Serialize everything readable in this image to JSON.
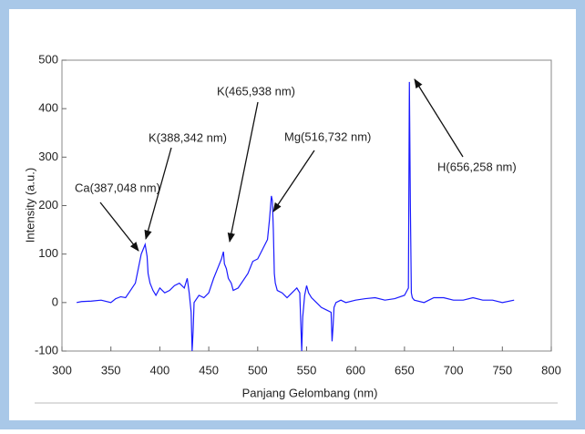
{
  "chart_data": {
    "type": "line",
    "xlabel": "Panjang Gelombang (nm)",
    "ylabel": "Intensity (a.u.)",
    "x": [
      315,
      320,
      330,
      340,
      350,
      355,
      360,
      365,
      370,
      375,
      378,
      381,
      383,
      385,
      387,
      388,
      390,
      393,
      396,
      400,
      405,
      410,
      415,
      420,
      425,
      428,
      430,
      432,
      433,
      434,
      435,
      440,
      445,
      450,
      455,
      460,
      463,
      465,
      466,
      468,
      470,
      473,
      475,
      480,
      485,
      490,
      495,
      500,
      505,
      510,
      512,
      514,
      515,
      516,
      517,
      518,
      520,
      525,
      530,
      535,
      540,
      543,
      544,
      545,
      546,
      548,
      550,
      552,
      555,
      560,
      565,
      570,
      575,
      576,
      577,
      578,
      580,
      585,
      590,
      600,
      610,
      620,
      630,
      640,
      650,
      654,
      655,
      656,
      657,
      658,
      660,
      670,
      680,
      690,
      700,
      710,
      720,
      730,
      740,
      750,
      762
    ],
    "series": [
      {
        "color": "#1a1aff",
        "values": [
          0,
          2,
          3,
          5,
          0,
          8,
          12,
          10,
          25,
          40,
          70,
          100,
          110,
          120,
          95,
          60,
          40,
          25,
          15,
          30,
          20,
          25,
          35,
          40,
          30,
          50,
          20,
          -20,
          -100,
          -60,
          0,
          15,
          10,
          20,
          50,
          75,
          90,
          105,
          80,
          70,
          50,
          40,
          25,
          30,
          45,
          60,
          85,
          90,
          110,
          130,
          170,
          220,
          210,
          150,
          60,
          40,
          25,
          20,
          10,
          20,
          30,
          20,
          -40,
          -100,
          -30,
          15,
          35,
          20,
          10,
          0,
          -10,
          -15,
          -20,
          -80,
          -50,
          -10,
          0,
          5,
          0,
          5,
          8,
          10,
          5,
          8,
          15,
          30,
          455,
          200,
          20,
          10,
          5,
          0,
          10,
          10,
          5,
          5,
          10,
          5,
          5,
          0,
          5
        ]
      }
    ],
    "xlim": [
      300,
      800
    ],
    "xticks": [
      300,
      350,
      400,
      450,
      500,
      550,
      600,
      650,
      700,
      750,
      800
    ],
    "ylim": [
      -100,
      500
    ],
    "yticks": [
      -100,
      0,
      100,
      200,
      300,
      400,
      500
    ],
    "annotations": [
      "Ca(387,048 nm)",
      "K(388,342 nm)",
      "K(465,938 nm)",
      "Mg(516,732 nm)",
      "H(656,258 nm)"
    ]
  }
}
